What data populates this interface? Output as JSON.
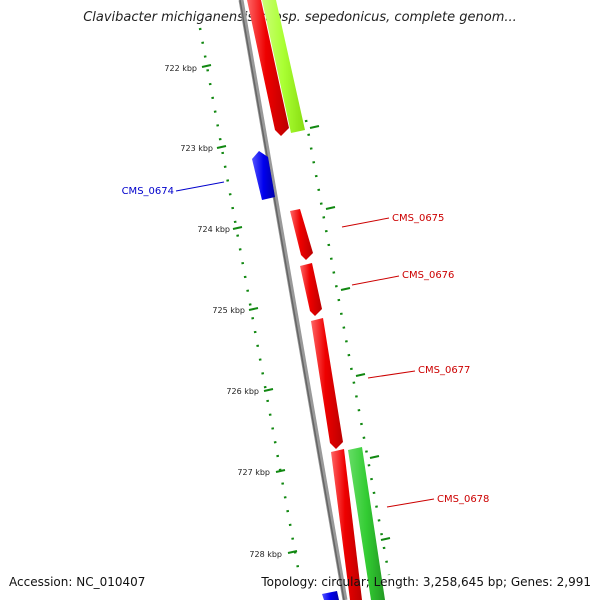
{
  "title": "Clavibacter michiganensis subsp. sepedonicus, complete genom...",
  "footer": {
    "accession": "Accession: NC_010407",
    "topology": "Topology: circular; Length: 3,258,645 bp; Genes: 2,991"
  },
  "colors": {
    "backbone": "#888888",
    "reverse_strand_gene": "#0000ee",
    "forward_strand_gene": "#ee0000",
    "other_gene_light": "#aaff33",
    "other_gene": "#33cc33",
    "tick": "#118811",
    "label_forward": "#cc0000",
    "label_reverse": "#0000cc"
  },
  "ticks": [
    {
      "label": "722 kbp"
    },
    {
      "label": "723 kbp"
    },
    {
      "label": "724 kbp"
    },
    {
      "label": "725 kbp"
    },
    {
      "label": "726 kbp"
    },
    {
      "label": "727 kbp"
    },
    {
      "label": "728 kbp"
    }
  ],
  "genes": [
    {
      "id": "CMS_0674",
      "strand": "reverse"
    },
    {
      "id": "CMS_0675",
      "strand": "forward"
    },
    {
      "id": "CMS_0676",
      "strand": "forward"
    },
    {
      "id": "CMS_0677",
      "strand": "forward"
    },
    {
      "id": "CMS_0678",
      "strand": "forward"
    }
  ]
}
